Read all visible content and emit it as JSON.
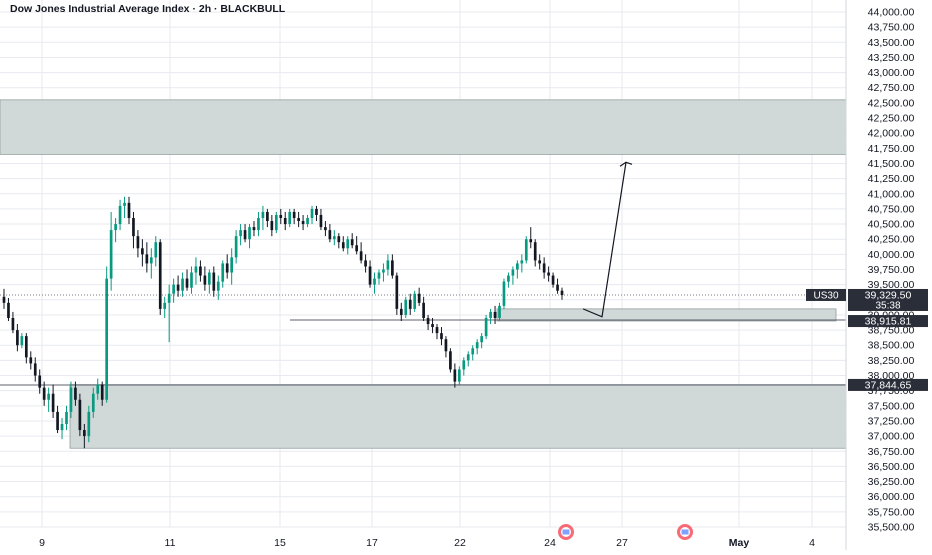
{
  "chart_title": "Dow Jones Industrial Average Index · 2h · BLACKBULL",
  "colors": {
    "up": "#089981",
    "down": "#131722",
    "zone_fill": "#cfd8d6",
    "zone_stroke": "#2a2e39",
    "grid": "#e8eaef",
    "text": "#131722"
  },
  "chart_data": {
    "type": "candlestick",
    "y_axis": {
      "min": 35500,
      "max": 44000,
      "tick_step": 250,
      "tick_labels": [
        "44,000.00",
        "43,750.00",
        "43,500.00",
        "43,250.00",
        "43,000.00",
        "42,750.00",
        "42,500.00",
        "42,250.00",
        "42,000.00",
        "41,750.00",
        "41,500.00",
        "41,250.00",
        "41,000.00",
        "40,750.00",
        "40,500.00",
        "40,250.00",
        "40,000.00",
        "39,750.00",
        "39,500.00",
        "39,250.00",
        "39,000.00",
        "38,750.00",
        "38,500.00",
        "38,250.00",
        "38,000.00",
        "37,750.00",
        "37,500.00",
        "37,250.00",
        "37,000.00",
        "36,750.00",
        "36,500.00",
        "36,250.00",
        "36,000.00",
        "35,750.00",
        "35,500.00"
      ]
    },
    "x_axis": {
      "tick_labels": [
        "9",
        "11",
        "15",
        "17",
        "22",
        "24",
        "27",
        "May",
        "4"
      ]
    },
    "candles": [
      [
        39300,
        39430,
        39100,
        39200
      ],
      [
        39200,
        39280,
        38900,
        38950
      ],
      [
        38950,
        39050,
        38700,
        38750
      ],
      [
        38750,
        38850,
        38400,
        38500
      ],
      [
        38500,
        38700,
        38450,
        38650
      ],
      [
        38650,
        38700,
        38200,
        38300
      ],
      [
        38300,
        38400,
        38100,
        38200
      ],
      [
        38200,
        38300,
        37900,
        38000
      ],
      [
        38000,
        38100,
        37700,
        37800
      ],
      [
        37800,
        37900,
        37500,
        37600
      ],
      [
        37600,
        37800,
        37400,
        37700
      ],
      [
        37700,
        37850,
        37300,
        37400
      ],
      [
        37400,
        37500,
        37050,
        37100
      ],
      [
        37100,
        37300,
        36950,
        37200
      ],
      [
        37200,
        37500,
        37100,
        37400
      ],
      [
        37400,
        37900,
        37300,
        37800
      ],
      [
        37800,
        37900,
        37500,
        37600
      ],
      [
        37600,
        37700,
        37000,
        37100
      ],
      [
        37100,
        37200,
        36800,
        37000
      ],
      [
        37000,
        37500,
        36900,
        37400
      ],
      [
        37400,
        37800,
        37300,
        37700
      ],
      [
        37700,
        37950,
        37600,
        37850
      ],
      [
        37850,
        37900,
        37500,
        37600
      ],
      [
        37600,
        39800,
        37550,
        39600
      ],
      [
        39600,
        40700,
        39400,
        40400
      ],
      [
        40400,
        40600,
        40200,
        40500
      ],
      [
        40500,
        40900,
        40400,
        40800
      ],
      [
        40800,
        40950,
        40600,
        40850
      ],
      [
        40850,
        40950,
        40500,
        40600
      ],
      [
        40600,
        40700,
        40100,
        40300
      ],
      [
        40300,
        40400,
        39950,
        40100
      ],
      [
        40100,
        40250,
        39800,
        40000
      ],
      [
        40000,
        40200,
        39700,
        39850
      ],
      [
        39850,
        40100,
        39600,
        39950
      ],
      [
        39950,
        40300,
        39800,
        40200
      ],
      [
        40200,
        40250,
        39000,
        39100
      ],
      [
        39100,
        39300,
        38950,
        39200
      ],
      [
        39200,
        39500,
        38550,
        39350
      ],
      [
        39350,
        39600,
        39200,
        39500
      ],
      [
        39500,
        39650,
        39300,
        39400
      ],
      [
        39400,
        39700,
        39300,
        39600
      ],
      [
        39600,
        39750,
        39400,
        39450
      ],
      [
        39450,
        39800,
        39350,
        39700
      ],
      [
        39700,
        39950,
        39500,
        39800
      ],
      [
        39800,
        39900,
        39550,
        39650
      ],
      [
        39650,
        39800,
        39400,
        39500
      ],
      [
        39500,
        39750,
        39350,
        39700
      ],
      [
        39700,
        39800,
        39300,
        39400
      ],
      [
        39400,
        39650,
        39250,
        39550
      ],
      [
        39550,
        39900,
        39450,
        39850
      ],
      [
        39850,
        40000,
        39600,
        39700
      ],
      [
        39700,
        40100,
        39500,
        39950
      ],
      [
        39950,
        40400,
        39850,
        40300
      ],
      [
        40300,
        40500,
        40150,
        40400
      ],
      [
        40400,
        40500,
        40200,
        40250
      ],
      [
        40250,
        40500,
        40100,
        40450
      ],
      [
        40450,
        40550,
        40300,
        40400
      ],
      [
        40400,
        40700,
        40300,
        40600
      ],
      [
        40600,
        40800,
        40400,
        40700
      ],
      [
        40700,
        40750,
        40450,
        40550
      ],
      [
        40550,
        40650,
        40300,
        40400
      ],
      [
        40400,
        40700,
        40350,
        40650
      ],
      [
        40650,
        40750,
        40500,
        40600
      ],
      [
        40600,
        40700,
        40400,
        40500
      ],
      [
        40500,
        40750,
        40450,
        40700
      ],
      [
        40700,
        40750,
        40500,
        40600
      ],
      [
        40600,
        40700,
        40450,
        40550
      ],
      [
        40550,
        40650,
        40400,
        40500
      ],
      [
        40500,
        40650,
        40450,
        40600
      ],
      [
        40600,
        40800,
        40500,
        40750
      ],
      [
        40750,
        40800,
        40550,
        40650
      ],
      [
        40650,
        40750,
        40400,
        40450
      ],
      [
        40450,
        40550,
        40300,
        40400
      ],
      [
        40400,
        40500,
        40200,
        40250
      ],
      [
        40250,
        40400,
        40150,
        40300
      ],
      [
        40300,
        40350,
        40100,
        40200
      ],
      [
        40200,
        40300,
        40050,
        40100
      ],
      [
        40100,
        40300,
        40000,
        40250
      ],
      [
        40250,
        40350,
        40100,
        40150
      ],
      [
        40150,
        40300,
        40000,
        40050
      ],
      [
        40050,
        40200,
        39850,
        39900
      ],
      [
        39900,
        40000,
        39700,
        39800
      ],
      [
        39800,
        39900,
        39450,
        39500
      ],
      [
        39500,
        39700,
        39350,
        39600
      ],
      [
        39600,
        39750,
        39500,
        39700
      ],
      [
        39700,
        39850,
        39550,
        39750
      ],
      [
        39750,
        40000,
        39650,
        39900
      ],
      [
        39900,
        40000,
        39600,
        39650
      ],
      [
        39650,
        39700,
        39000,
        39100
      ],
      [
        39100,
        39200,
        38900,
        39000
      ],
      [
        39000,
        39300,
        38950,
        39250
      ],
      [
        39250,
        39350,
        39000,
        39100
      ],
      [
        39100,
        39400,
        39050,
        39350
      ],
      [
        39350,
        39450,
        39150,
        39200
      ],
      [
        39200,
        39300,
        38900,
        38950
      ],
      [
        38950,
        39000,
        38750,
        38850
      ],
      [
        38850,
        38950,
        38700,
        38800
      ],
      [
        38800,
        38850,
        38600,
        38700
      ],
      [
        38700,
        38800,
        38500,
        38600
      ],
      [
        38600,
        38650,
        38300,
        38400
      ],
      [
        38400,
        38450,
        38050,
        38100
      ],
      [
        38100,
        38200,
        37800,
        37900
      ],
      [
        37900,
        38150,
        37850,
        38100
      ],
      [
        38100,
        38300,
        38000,
        38250
      ],
      [
        38250,
        38400,
        38150,
        38350
      ],
      [
        38350,
        38500,
        38250,
        38450
      ],
      [
        38450,
        38600,
        38350,
        38550
      ],
      [
        38550,
        38700,
        38450,
        38650
      ],
      [
        38650,
        39000,
        38600,
        38950
      ],
      [
        38950,
        39100,
        38850,
        39050
      ],
      [
        39050,
        39150,
        38850,
        38950
      ],
      [
        38950,
        39200,
        38900,
        39150
      ],
      [
        39150,
        39600,
        39100,
        39550
      ],
      [
        39550,
        39700,
        39450,
        39650
      ],
      [
        39650,
        39800,
        39500,
        39750
      ],
      [
        39750,
        39900,
        39600,
        39850
      ],
      [
        39850,
        40000,
        39700,
        39900
      ],
      [
        39900,
        40300,
        39850,
        40250
      ],
      [
        40250,
        40450,
        40100,
        40200
      ],
      [
        40200,
        40250,
        39800,
        39900
      ],
      [
        39900,
        40000,
        39750,
        39850
      ],
      [
        39850,
        39950,
        39600,
        39700
      ],
      [
        39700,
        39800,
        39550,
        39650
      ],
      [
        39650,
        39700,
        39450,
        39500
      ],
      [
        39500,
        39600,
        39350,
        39400
      ],
      [
        39400,
        39450,
        39250,
        39330
      ]
    ],
    "zones": [
      {
        "high": 42550,
        "low": 41650
      },
      {
        "high": 39100,
        "low": 38900
      },
      {
        "high": 37850,
        "low": 36800
      }
    ],
    "support_line": 38915.81,
    "projection": [
      [
        39100,
        38970
      ],
      [
        38970,
        41520
      ]
    ],
    "price_labels": [
      {
        "text": "39,329.50",
        "sub": "35:38",
        "tag": "US30",
        "style": "dark"
      },
      {
        "text": "38,915.81",
        "style": "dark"
      },
      {
        "text": "37,844.65",
        "style": "dark"
      }
    ]
  }
}
